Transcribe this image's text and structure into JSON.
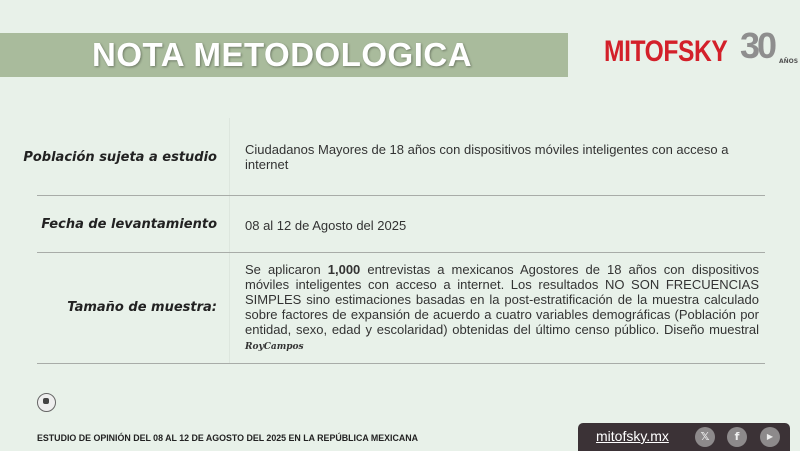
{
  "header": {
    "title": "NOTA METODOLOGICA"
  },
  "logo": {
    "brand": "MITOFSKY",
    "years": "30",
    "years_label": "AÑOS",
    "brand_color": "#d3202a"
  },
  "rows": [
    {
      "label": "Población sujeta a estudio",
      "value": "Ciudadanos Mayores de 18 años con dispositivos móviles inteligentes con acceso a internet"
    },
    {
      "label": "Fecha de levantamiento",
      "value": "08 al 12 de Agosto del 2025"
    },
    {
      "label": "Tamaño de muestra:",
      "value_pre": "Se aplicaron ",
      "value_bold": "1,000",
      "value_post": " entrevistas a mexicanos Agostores de 18 años con dispositivos móviles inteligentes con acceso a internet. Los resultados NO SON FRECUENCIAS SIMPLES sino estimaciones basadas en la post-estratificación de la muestra calculado sobre factores de expansión de acuerdo a cuatro variables demográficas (Población por entidad, sexo, edad y escolaridad) obtenidas del último censo público. Diseño muestral ",
      "signature": "RoyCampos"
    }
  ],
  "footer": {
    "study": "ESTUDIO DE OPINIÓN DEL 08 AL 12 DE AGOSTO DEL 2025 EN LA REPÚBLICA MEXICANA",
    "site": "mitofsky.mx",
    "icons": {
      "x": "𝕏",
      "facebook": "f",
      "youtube": "▶"
    }
  }
}
